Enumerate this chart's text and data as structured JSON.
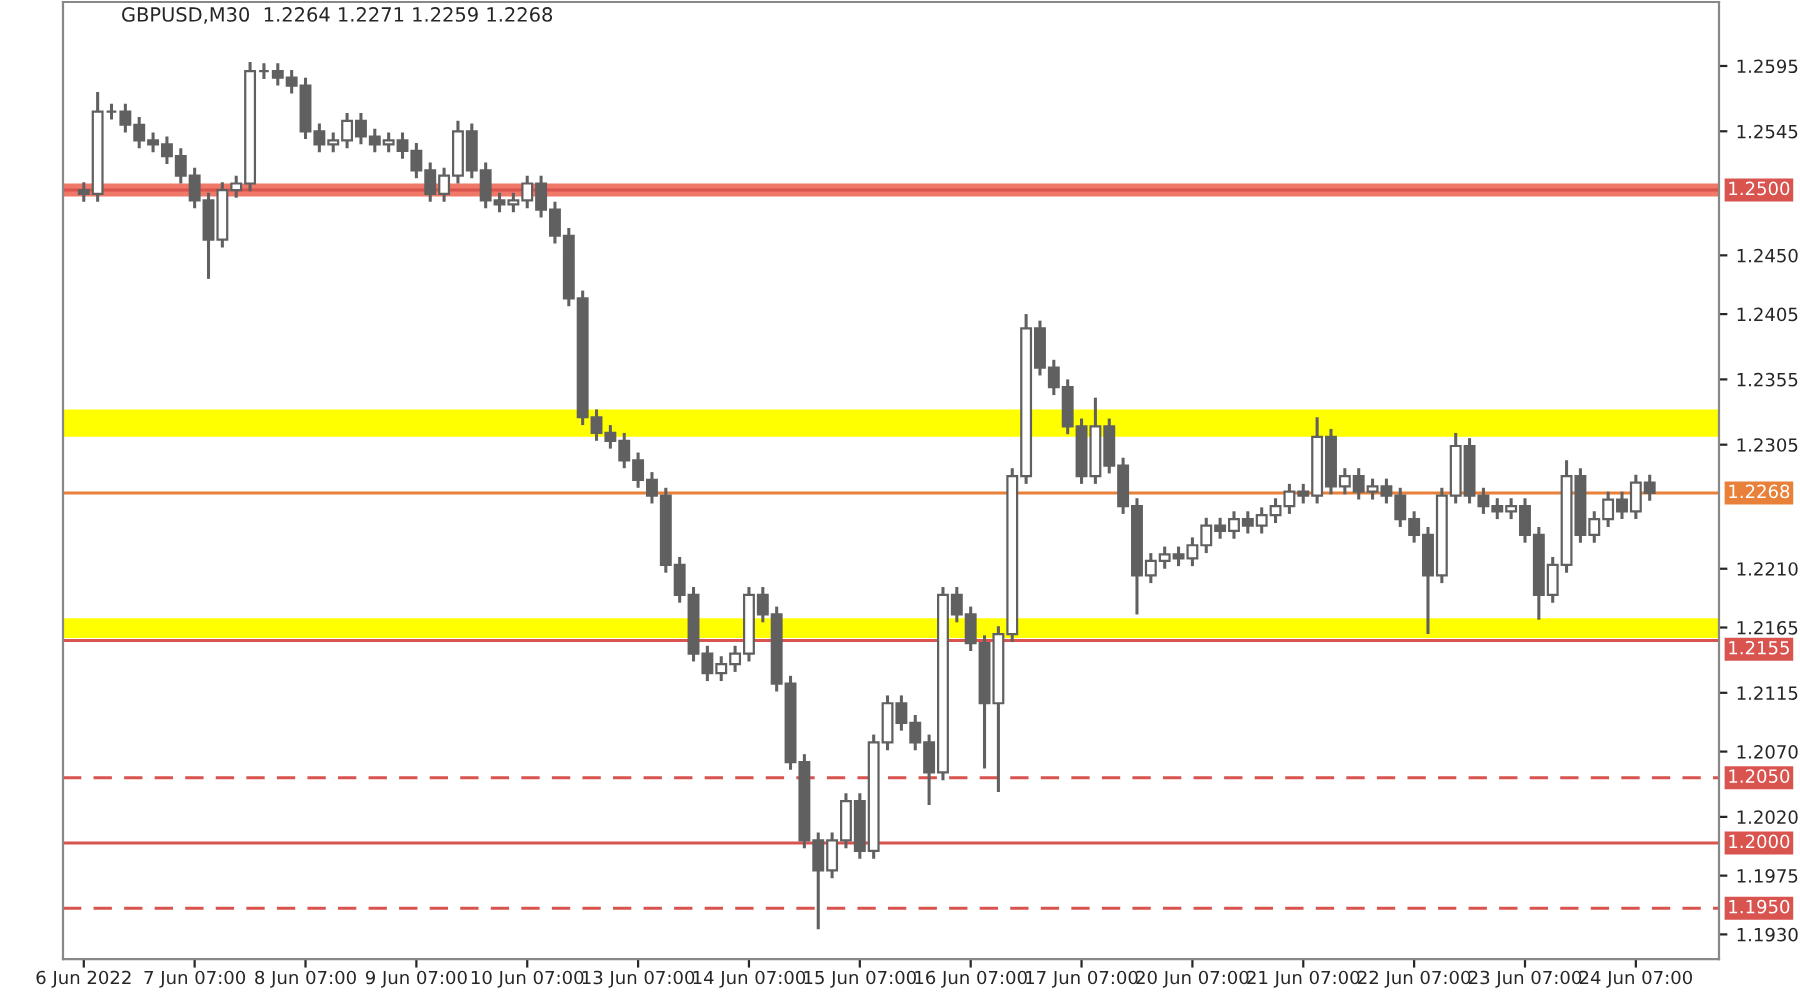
{
  "chart_data": {
    "type": "candlestick",
    "title": "GBPUSD,M30  1.2264 1.2271 1.2259 1.2268",
    "categories": [
      "6 Jun 2022",
      null,
      null,
      null,
      null,
      null,
      null,
      null,
      "7 Jun 07:00",
      null,
      null,
      null,
      null,
      null,
      null,
      null,
      "8 Jun 07:00",
      null,
      null,
      null,
      null,
      null,
      null,
      null,
      "9 Jun 07:00",
      null,
      null,
      null,
      null,
      null,
      null,
      null,
      "10 Jun 07:00",
      null,
      null,
      null,
      null,
      null,
      null,
      null,
      "13 Jun 07:00",
      null,
      null,
      null,
      null,
      null,
      null,
      null,
      "14 Jun 07:00",
      null,
      null,
      null,
      null,
      null,
      null,
      null,
      "15 Jun 07:00",
      null,
      null,
      null,
      null,
      null,
      null,
      null,
      "16 Jun 07:00",
      null,
      null,
      null,
      null,
      null,
      null,
      null,
      "17 Jun 07:00",
      null,
      null,
      null,
      null,
      null,
      null,
      null,
      "20 Jun 07:00",
      null,
      null,
      null,
      null,
      null,
      null,
      null,
      "21 Jun 07:00",
      null,
      null,
      null,
      null,
      null,
      null,
      null,
      "22 Jun 07:00",
      null,
      null,
      null,
      null,
      null,
      null,
      null,
      "23 Jun 07:00",
      null,
      null,
      null,
      null,
      null,
      null,
      null,
      "24 Jun 07:00",
      null
    ],
    "series": [
      {
        "color": "#606060",
        "ohlc": [
          [
            1.25,
            1.2506,
            1.2491,
            1.2497
          ],
          [
            1.2497,
            1.2575,
            1.2491,
            1.256
          ],
          [
            1.256,
            1.2566,
            1.2554,
            1.256
          ],
          [
            1.256,
            1.2566,
            1.2544,
            1.255
          ],
          [
            1.255,
            1.2556,
            1.2532,
            1.2538
          ],
          [
            1.2538,
            1.2544,
            1.2529,
            1.2535
          ],
          [
            1.2535,
            1.2541,
            1.252,
            1.2526
          ],
          [
            1.2526,
            1.2532,
            1.2505,
            1.2511
          ],
          [
            1.2511,
            1.2517,
            1.2486,
            1.2492
          ],
          [
            1.2492,
            1.2498,
            1.2432,
            1.2462
          ],
          [
            1.2462,
            1.2506,
            1.2456,
            1.25
          ],
          [
            1.25,
            1.2511,
            1.2494,
            1.2505
          ],
          [
            1.2505,
            1.2598,
            1.2499,
            1.2591
          ],
          [
            1.2591,
            1.2597,
            1.2585,
            1.2591
          ],
          [
            1.2591,
            1.2597,
            1.258,
            1.2586
          ],
          [
            1.2586,
            1.2592,
            1.2574,
            1.258
          ],
          [
            1.258,
            1.2586,
            1.2539,
            1.2545
          ],
          [
            1.2545,
            1.2551,
            1.2529,
            1.2535
          ],
          [
            1.2535,
            1.2544,
            1.2529,
            1.2538
          ],
          [
            1.2538,
            1.2559,
            1.2532,
            1.2553
          ],
          [
            1.2553,
            1.2559,
            1.2535,
            1.2541
          ],
          [
            1.2541,
            1.2547,
            1.2529,
            1.2535
          ],
          [
            1.2535,
            1.2544,
            1.2529,
            1.2538
          ],
          [
            1.2538,
            1.2544,
            1.2524,
            1.253
          ],
          [
            1.253,
            1.2536,
            1.2509,
            1.2515
          ],
          [
            1.2515,
            1.2521,
            1.2491,
            1.2497
          ],
          [
            1.2497,
            1.2517,
            1.2491,
            1.2511
          ],
          [
            1.2511,
            1.2553,
            1.2505,
            1.2545
          ],
          [
            1.2545,
            1.2551,
            1.2509,
            1.2515
          ],
          [
            1.2515,
            1.2521,
            1.2486,
            1.2492
          ],
          [
            1.2492,
            1.2498,
            1.2483,
            1.2489
          ],
          [
            1.2489,
            1.2498,
            1.2483,
            1.2492
          ],
          [
            1.2492,
            1.2511,
            1.2486,
            1.2505
          ],
          [
            1.2505,
            1.2511,
            1.2479,
            1.2485
          ],
          [
            1.2485,
            1.2491,
            1.2459,
            1.2465
          ],
          [
            1.2465,
            1.2471,
            1.2411,
            1.2417
          ],
          [
            1.2417,
            1.2423,
            1.232,
            1.2326
          ],
          [
            1.2326,
            1.2332,
            1.2308,
            1.2314
          ],
          [
            1.2314,
            1.232,
            1.2302,
            1.2308
          ],
          [
            1.2308,
            1.2314,
            1.2287,
            1.2293
          ],
          [
            1.2293,
            1.2299,
            1.2272,
            1.2278
          ],
          [
            1.2278,
            1.2284,
            1.226,
            1.2266
          ],
          [
            1.2266,
            1.2272,
            1.2207,
            1.2213
          ],
          [
            1.2213,
            1.2219,
            1.2184,
            1.219
          ],
          [
            1.219,
            1.2196,
            1.2139,
            1.2145
          ],
          [
            1.2145,
            1.2151,
            1.2124,
            1.213
          ],
          [
            1.213,
            1.2143,
            1.2124,
            1.2137
          ],
          [
            1.2137,
            1.2151,
            1.2131,
            1.2145
          ],
          [
            1.2145,
            1.2196,
            1.2139,
            1.219
          ],
          [
            1.219,
            1.2196,
            1.2169,
            1.2175
          ],
          [
            1.2175,
            1.2181,
            1.2116,
            1.2122
          ],
          [
            1.2122,
            1.2128,
            1.2056,
            1.2062
          ],
          [
            1.2062,
            1.2068,
            1.1996,
            1.2002
          ],
          [
            1.2002,
            1.2008,
            1.1934,
            1.1979
          ],
          [
            1.1979,
            1.2008,
            1.1973,
            1.2002
          ],
          [
            1.2002,
            1.2038,
            1.1996,
            1.2032
          ],
          [
            1.2032,
            1.2038,
            1.1988,
            1.1994
          ],
          [
            1.1994,
            1.2083,
            1.1988,
            1.2077
          ],
          [
            1.2077,
            1.2113,
            1.2071,
            1.2107
          ],
          [
            1.2107,
            1.2113,
            1.2086,
            1.2092
          ],
          [
            1.2092,
            1.2098,
            1.2071,
            1.2077
          ],
          [
            1.2077,
            1.2083,
            1.2029,
            1.2054
          ],
          [
            1.2054,
            1.2196,
            1.2048,
            1.219
          ],
          [
            1.219,
            1.2196,
            1.2169,
            1.2175
          ],
          [
            1.2175,
            1.2181,
            1.2147,
            1.2153
          ],
          [
            1.2153,
            1.2159,
            1.2057,
            1.2107
          ],
          [
            1.2107,
            1.2166,
            1.2039,
            1.216
          ],
          [
            1.216,
            1.2287,
            1.2154,
            1.2281
          ],
          [
            1.2281,
            1.2405,
            1.2275,
            1.2394
          ],
          [
            1.2394,
            1.24,
            1.2358,
            1.2364
          ],
          [
            1.2364,
            1.237,
            1.2343,
            1.2349
          ],
          [
            1.2349,
            1.2355,
            1.2313,
            1.2319
          ],
          [
            1.2319,
            1.2325,
            1.2275,
            1.2281
          ],
          [
            1.2281,
            1.2341,
            1.2275,
            1.2319
          ],
          [
            1.2319,
            1.2325,
            1.2283,
            1.2289
          ],
          [
            1.2289,
            1.2295,
            1.2252,
            1.2258
          ],
          [
            1.2258,
            1.2264,
            1.2175,
            1.2205
          ],
          [
            1.2205,
            1.2222,
            1.2199,
            1.2216
          ],
          [
            1.2216,
            1.2227,
            1.221,
            1.2221
          ],
          [
            1.2221,
            1.2227,
            1.2212,
            1.2218
          ],
          [
            1.2218,
            1.2234,
            1.2212,
            1.2228
          ],
          [
            1.2228,
            1.2249,
            1.2222,
            1.2243
          ],
          [
            1.2243,
            1.2249,
            1.2233,
            1.2239
          ],
          [
            1.2239,
            1.2254,
            1.2233,
            1.2248
          ],
          [
            1.2248,
            1.2254,
            1.2237,
            1.2243
          ],
          [
            1.2243,
            1.2257,
            1.2237,
            1.2251
          ],
          [
            1.2251,
            1.2264,
            1.2245,
            1.2258
          ],
          [
            1.2258,
            1.2275,
            1.2252,
            1.2269
          ],
          [
            1.2269,
            1.2275,
            1.226,
            1.2266
          ],
          [
            1.2266,
            1.2326,
            1.226,
            1.2311
          ],
          [
            1.2311,
            1.2317,
            1.2267,
            1.2273
          ],
          [
            1.2273,
            1.2287,
            1.2267,
            1.2281
          ],
          [
            1.2281,
            1.2287,
            1.2263,
            1.2269
          ],
          [
            1.2269,
            1.2279,
            1.2263,
            1.2273
          ],
          [
            1.2273,
            1.2279,
            1.226,
            1.2266
          ],
          [
            1.2266,
            1.2272,
            1.2242,
            1.2248
          ],
          [
            1.2248,
            1.2254,
            1.223,
            1.2236
          ],
          [
            1.2236,
            1.2242,
            1.216,
            1.2205
          ],
          [
            1.2205,
            1.2272,
            1.2199,
            1.2266
          ],
          [
            1.2266,
            1.2314,
            1.226,
            1.2304
          ],
          [
            1.2304,
            1.231,
            1.226,
            1.2266
          ],
          [
            1.2266,
            1.2272,
            1.2252,
            1.2258
          ],
          [
            1.2258,
            1.2264,
            1.2248,
            1.2254
          ],
          [
            1.2254,
            1.2264,
            1.2248,
            1.2258
          ],
          [
            1.2258,
            1.2264,
            1.223,
            1.2236
          ],
          [
            1.2236,
            1.2242,
            1.2171,
            1.219
          ],
          [
            1.219,
            1.2219,
            1.2184,
            1.2213
          ],
          [
            1.2213,
            1.2293,
            1.2207,
            1.2281
          ],
          [
            1.2281,
            1.2287,
            1.223,
            1.2236
          ],
          [
            1.2236,
            1.2254,
            1.223,
            1.2248
          ],
          [
            1.2248,
            1.2269,
            1.2242,
            1.2263
          ],
          [
            1.2263,
            1.2269,
            1.2248,
            1.2254
          ],
          [
            1.2254,
            1.2282,
            1.2248,
            1.2276
          ],
          [
            1.2276,
            1.2282,
            1.2262,
            1.2268
          ]
        ]
      }
    ],
    "ylim": [
      1.1911,
      1.2644
    ],
    "yticks": [
      1.2595,
      1.2545,
      {
        "value": 1.245,
        "label": "1.2450"
      },
      1.2405,
      1.2355,
      1.2305,
      {
        "value": 1.221,
        "label": "1.2210"
      },
      1.2165,
      1.2115,
      {
        "value": 1.207,
        "label": "1.2070"
      },
      {
        "value": 1.202,
        "label": "1.2020"
      },
      1.1975,
      {
        "value": 1.193,
        "label": "1.1930"
      }
    ],
    "bands": [
      {
        "axis": "y",
        "from": 1.2311,
        "to": 1.2332,
        "color": "#ffff00"
      },
      {
        "axis": "y",
        "from": 1.2157,
        "to": 1.2172,
        "color": "#ffff00"
      },
      {
        "axis": "y",
        "from": 1.2495,
        "to": 1.2505,
        "color": "#f07868"
      }
    ],
    "ref_lines": [
      {
        "axis": "y",
        "value": 1.25,
        "label": "1.2500",
        "color": "#d9534f",
        "line_style": "solid"
      },
      {
        "axis": "y",
        "value": 1.2268,
        "label": "1.2268",
        "color": "#e8803a",
        "line_style": "solid"
      },
      {
        "axis": "y",
        "value": 1.2155,
        "label": "1.2155",
        "color": "#d9534f",
        "line_style": "solid"
      },
      {
        "axis": "y",
        "value": 1.205,
        "label": "1.2050",
        "color": "#d9534f",
        "line_style": "dashed"
      },
      {
        "axis": "y",
        "value": 1.2,
        "label": "1.2000",
        "color": "#d9534f",
        "line_style": "solid"
      },
      {
        "axis": "y",
        "value": 1.195,
        "label": "1.1950",
        "color": "#d9534f",
        "line_style": "dashed"
      }
    ],
    "grid": false,
    "legend": false
  }
}
